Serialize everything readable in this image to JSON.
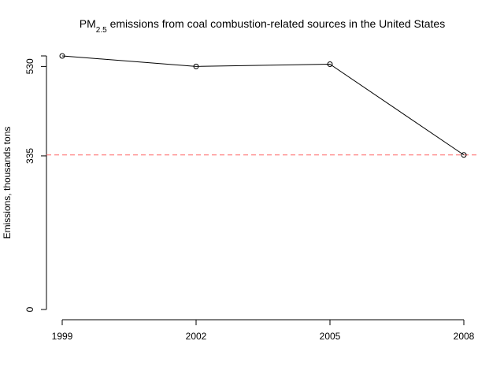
{
  "chart_data": {
    "type": "line",
    "title_main": "PM",
    "title_sub": "2.5",
    "title_rest": " emissions from coal combustion-related sources in the United States",
    "xlabel": "",
    "ylabel": "Emissions, thousands tons",
    "x": [
      1999,
      2002,
      2005,
      2008
    ],
    "x_tick_labels": [
      "1999",
      "2002",
      "2005",
      "2008"
    ],
    "y": [
      553,
      530,
      535,
      337
    ],
    "y_tick_values": [
      0,
      335,
      530
    ],
    "y_tick_labels": [
      "0",
      "335",
      "530"
    ],
    "ylim": [
      0,
      553
    ],
    "reference_line": {
      "value": 337,
      "color": "#ff6666",
      "style": "dashed"
    },
    "grid": false,
    "line_color": "#000000"
  }
}
